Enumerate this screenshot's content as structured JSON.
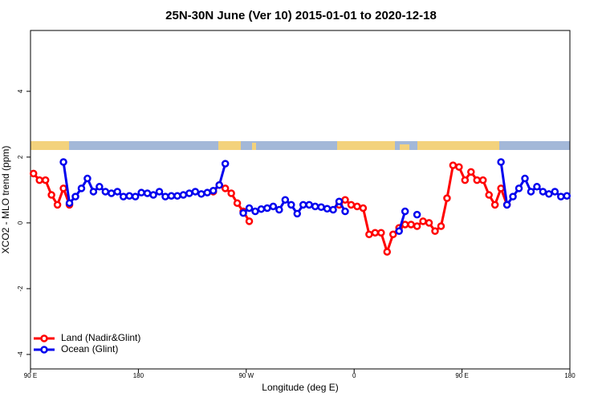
{
  "chart_data": {
    "type": "line",
    "title": "25N-30N June (Ver 10)   2015-01-01 to 2020-12-18",
    "x_label": "Longitude (deg E)",
    "y_label": "XCO2 - MLO trend (ppm)",
    "xlim": [
      90,
      540
    ],
    "ylim": [
      -4.44,
      5.85
    ],
    "xticks": [
      {
        "value": 90,
        "label": "90 E"
      },
      {
        "value": 180,
        "label": "180"
      },
      {
        "value": 270,
        "label": "90 W"
      },
      {
        "value": 360,
        "label": "0"
      },
      {
        "value": 450,
        "label": "90 E"
      },
      {
        "value": 540,
        "label": "180"
      }
    ],
    "yticks": [
      -4,
      -2,
      0,
      2,
      4
    ],
    "legend": "bottom-left",
    "series": [
      {
        "name": "Land (Nadir&Glint)",
        "color": "#ff0000",
        "x": [
          92.5,
          97.5,
          102.5,
          107.5,
          112.5,
          117.5,
          122.5,
          null,
          242.5,
          247.5,
          252.5,
          257.5,
          262.5,
          267.5,
          272.5,
          null,
          347.5,
          352.5,
          357.5,
          362.5,
          367.5,
          372.5,
          377.5,
          382.5,
          387.5,
          392.5,
          397.5,
          402.5,
          407.5,
          412.5,
          417.5,
          422.5,
          427.5,
          432.5,
          437.5,
          442.5,
          447.5,
          452.5,
          457.5,
          462.5,
          467.5,
          472.5,
          477.5,
          482.5,
          487.5
        ],
        "values": [
          1.5,
          1.3,
          1.3,
          0.85,
          0.55,
          1.05,
          0.55,
          null,
          0.95,
          1.15,
          1.05,
          0.9,
          0.6,
          0.35,
          0.05,
          null,
          0.55,
          0.7,
          0.55,
          0.5,
          0.45,
          -0.35,
          -0.3,
          -0.3,
          -0.88,
          -0.35,
          -0.15,
          -0.05,
          -0.05,
          -0.1,
          0.05,
          0.0,
          -0.25,
          -0.1,
          0.75,
          1.75,
          1.7,
          1.3,
          1.55,
          1.3,
          1.3,
          0.85,
          0.55,
          1.05,
          0.55
        ]
      },
      {
        "name": "Ocean (Glint)",
        "color": "#0000ee",
        "x": [
          117.5,
          122.5,
          127.5,
          132.5,
          137.5,
          142.5,
          147.5,
          152.5,
          157.5,
          162.5,
          167.5,
          172.5,
          177.5,
          182.5,
          187.5,
          192.5,
          197.5,
          202.5,
          207.5,
          212.5,
          217.5,
          222.5,
          227.5,
          232.5,
          237.5,
          242.5,
          247.5,
          252.5,
          null,
          267.5,
          272.5,
          277.5,
          282.5,
          287.5,
          292.5,
          297.5,
          302.5,
          307.5,
          312.5,
          317.5,
          322.5,
          327.5,
          332.5,
          337.5,
          342.5,
          347.5,
          352.5,
          null,
          397.5,
          402.5,
          null,
          412.5,
          null,
          482.5,
          487.5,
          492.5,
          497.5,
          502.5,
          507.5,
          512.5,
          517.5,
          522.5,
          527.5,
          532.5,
          537.5
        ],
        "values": [
          1.85,
          0.6,
          0.8,
          1.05,
          1.35,
          0.95,
          1.1,
          0.95,
          0.9,
          0.95,
          0.8,
          0.82,
          0.8,
          0.92,
          0.9,
          0.85,
          0.95,
          0.8,
          0.82,
          0.82,
          0.85,
          0.9,
          0.95,
          0.88,
          0.92,
          0.98,
          1.15,
          1.8,
          null,
          0.3,
          0.45,
          0.35,
          0.42,
          0.45,
          0.5,
          0.4,
          0.7,
          0.55,
          0.28,
          0.55,
          0.55,
          0.5,
          0.48,
          0.43,
          0.4,
          0.65,
          0.35,
          null,
          -0.25,
          0.35,
          null,
          0.25,
          null,
          1.85,
          0.55,
          0.8,
          1.05,
          1.35,
          0.95,
          1.1,
          0.95,
          0.88,
          0.95,
          0.8,
          0.82
        ]
      }
    ]
  }
}
